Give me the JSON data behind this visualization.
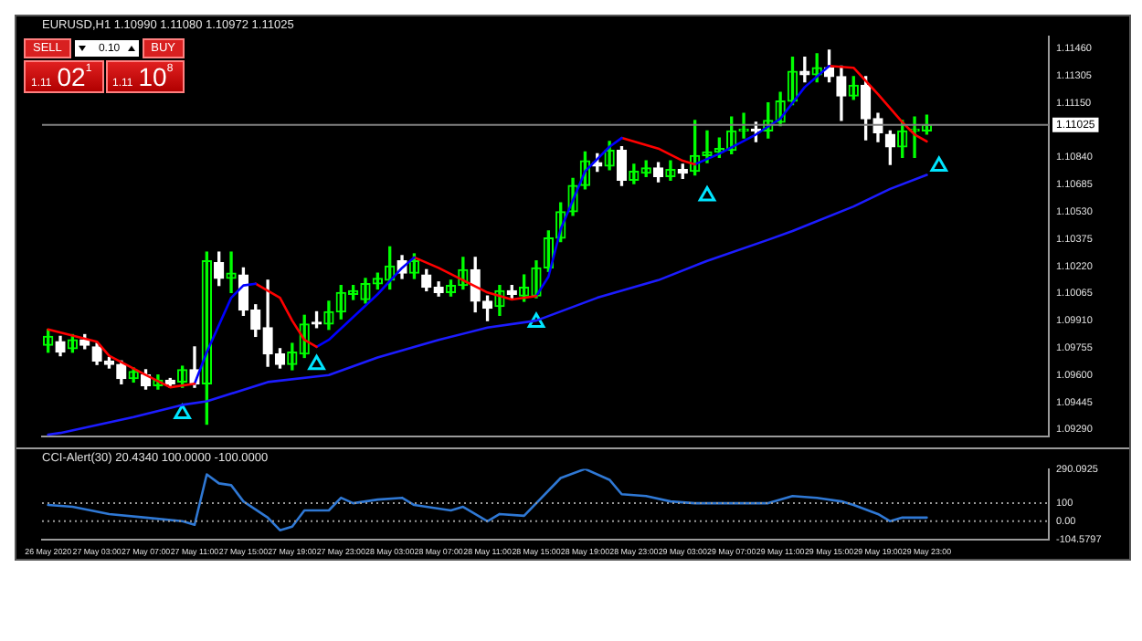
{
  "chart_data": [
    {
      "type": "candlestick",
      "title": "EURUSD,H1 1.10990 1.11080 1.10972 1.11025",
      "x": [
        "2020-05-26T23:00",
        "2020-05-27T00:00",
        "2020-05-27T01:00",
        "2020-05-27T02:00",
        "2020-05-27T03:00",
        "2020-05-27T04:00",
        "2020-05-27T05:00",
        "2020-05-27T06:00",
        "2020-05-27T07:00",
        "2020-05-27T08:00",
        "2020-05-27T09:00",
        "2020-05-27T10:00",
        "2020-05-27T11:00",
        "2020-05-27T12:00",
        "2020-05-27T13:00",
        "2020-05-27T14:00",
        "2020-05-27T15:00",
        "2020-05-27T16:00",
        "2020-05-27T17:00",
        "2020-05-27T18:00",
        "2020-05-27T19:00",
        "2020-05-27T20:00",
        "2020-05-27T21:00",
        "2020-05-27T22:00",
        "2020-05-27T23:00",
        "2020-05-28T00:00",
        "2020-05-28T01:00",
        "2020-05-28T02:00",
        "2020-05-28T03:00",
        "2020-05-28T04:00",
        "2020-05-28T05:00",
        "2020-05-28T06:00",
        "2020-05-28T07:00",
        "2020-05-28T08:00",
        "2020-05-28T09:00",
        "2020-05-28T10:00",
        "2020-05-28T11:00",
        "2020-05-28T12:00",
        "2020-05-28T13:00",
        "2020-05-28T14:00",
        "2020-05-28T15:00",
        "2020-05-28T16:00",
        "2020-05-28T17:00",
        "2020-05-28T18:00",
        "2020-05-28T19:00",
        "2020-05-28T20:00",
        "2020-05-28T21:00",
        "2020-05-28T22:00",
        "2020-05-28T23:00",
        "2020-05-29T00:00",
        "2020-05-29T01:00",
        "2020-05-29T02:00",
        "2020-05-29T03:00",
        "2020-05-29T04:00",
        "2020-05-29T05:00",
        "2020-05-29T06:00",
        "2020-05-29T07:00",
        "2020-05-29T08:00",
        "2020-05-29T09:00",
        "2020-05-29T10:00",
        "2020-05-29T11:00",
        "2020-05-29T12:00",
        "2020-05-29T13:00",
        "2020-05-29T14:00",
        "2020-05-29T15:00",
        "2020-05-29T16:00",
        "2020-05-29T17:00",
        "2020-05-29T18:00",
        "2020-05-29T19:00",
        "2020-05-29T20:00",
        "2020-05-29T21:00",
        "2020-05-29T22:00",
        "2020-05-29T23:00"
      ],
      "ohlc": [
        [
          1.0977,
          1.0986,
          1.0973,
          1.0982
        ],
        [
          1.0979,
          1.0982,
          1.0971,
          1.0973
        ],
        [
          1.0975,
          1.0983,
          1.0973,
          1.098
        ],
        [
          1.098,
          1.0983,
          1.0975,
          1.0977
        ],
        [
          1.0976,
          1.0978,
          1.0966,
          1.0968
        ],
        [
          1.0968,
          1.097,
          1.0964,
          1.0966
        ],
        [
          1.0966,
          1.0968,
          1.0955,
          1.0958
        ],
        [
          1.0958,
          1.0964,
          1.0956,
          1.0962
        ],
        [
          1.096,
          1.0963,
          1.0952,
          1.0954
        ],
        [
          1.0954,
          1.096,
          1.0952,
          1.0957
        ],
        [
          1.0957,
          1.0958,
          1.0953,
          1.0955
        ],
        [
          1.0956,
          1.0965,
          1.0953,
          1.0963
        ],
        [
          1.0963,
          1.0976,
          1.0953,
          1.0955
        ],
        [
          1.0955,
          1.103,
          1.0932,
          1.1025
        ],
        [
          1.1024,
          1.103,
          1.1011,
          1.1015
        ],
        [
          1.1015,
          1.103,
          1.1007,
          1.1018
        ],
        [
          1.1017,
          1.1021,
          1.0994,
          1.0997
        ],
        [
          1.0997,
          1.1,
          1.0982,
          1.0986
        ],
        [
          1.0987,
          1.1014,
          1.0965,
          1.0972
        ],
        [
          1.0972,
          1.0975,
          1.0964,
          1.0966
        ],
        [
          1.0966,
          1.0978,
          1.0963,
          1.0973
        ],
        [
          1.0972,
          1.0994,
          1.097,
          1.0989
        ],
        [
          1.099,
          1.0996,
          1.0987,
          1.0989
        ],
        [
          1.0989,
          1.1002,
          1.0986,
          1.0996
        ],
        [
          1.0996,
          1.1011,
          1.0992,
          1.1007
        ],
        [
          1.1006,
          1.1011,
          1.1003,
          1.1008
        ],
        [
          1.1003,
          1.1015,
          1.1001,
          1.1012
        ],
        [
          1.1012,
          1.1018,
          1.1009,
          1.1015
        ],
        [
          1.1014,
          1.1033,
          1.1009,
          1.1022
        ],
        [
          1.1025,
          1.1028,
          1.1015,
          1.1018
        ],
        [
          1.1018,
          1.1029,
          1.1015,
          1.1025
        ],
        [
          1.1017,
          1.102,
          1.1008,
          1.101
        ],
        [
          1.101,
          1.1013,
          1.1005,
          1.1007
        ],
        [
          1.1007,
          1.1014,
          1.1005,
          1.1011
        ],
        [
          1.1011,
          1.1027,
          1.1009,
          1.102
        ],
        [
          1.102,
          1.1027,
          1.0996,
          1.1002
        ],
        [
          1.1002,
          1.1005,
          1.0991,
          1.0998
        ],
        [
          1.0999,
          1.1011,
          1.0994,
          1.1008
        ],
        [
          1.1008,
          1.1011,
          1.1003,
          1.1006
        ],
        [
          1.1005,
          1.1017,
          1.1002,
          1.101
        ],
        [
          1.1005,
          1.1025,
          1.1004,
          1.1021
        ],
        [
          1.1021,
          1.1042,
          1.1019,
          1.1038
        ],
        [
          1.1038,
          1.1058,
          1.1036,
          1.1053
        ],
        [
          1.1053,
          1.1072,
          1.1051,
          1.1068
        ],
        [
          1.1068,
          1.1087,
          1.1066,
          1.1082
        ],
        [
          1.1081,
          1.1086,
          1.1076,
          1.1079
        ],
        [
          1.1079,
          1.1093,
          1.1077,
          1.1088
        ],
        [
          1.1088,
          1.109,
          1.1068,
          1.1071
        ],
        [
          1.1071,
          1.108,
          1.1069,
          1.1076
        ],
        [
          1.1075,
          1.1082,
          1.1073,
          1.1078
        ],
        [
          1.1078,
          1.1081,
          1.107,
          1.1073
        ],
        [
          1.1073,
          1.1082,
          1.1071,
          1.1077
        ],
        [
          1.1077,
          1.108,
          1.1072,
          1.1075
        ],
        [
          1.1076,
          1.1105,
          1.1074,
          1.1085
        ],
        [
          1.1085,
          1.1099,
          1.1081,
          1.1087
        ],
        [
          1.1087,
          1.1095,
          1.1084,
          1.1089
        ],
        [
          1.1088,
          1.1107,
          1.1086,
          1.1099
        ],
        [
          1.1099,
          1.1109,
          1.1095,
          1.11
        ],
        [
          1.11,
          1.1104,
          1.1093,
          1.1099
        ],
        [
          1.1099,
          1.1115,
          1.1095,
          1.1105
        ],
        [
          1.1104,
          1.1121,
          1.1102,
          1.1116
        ],
        [
          1.1116,
          1.1141,
          1.1114,
          1.1133
        ],
        [
          1.1133,
          1.1141,
          1.1127,
          1.1131
        ],
        [
          1.1131,
          1.1143,
          1.1127,
          1.1135
        ],
        [
          1.1135,
          1.1145,
          1.1127,
          1.113
        ],
        [
          1.113,
          1.1136,
          1.1105,
          1.1119
        ],
        [
          1.1119,
          1.113,
          1.1117,
          1.1125
        ],
        [
          1.1125,
          1.113,
          1.1094,
          1.1106
        ],
        [
          1.1106,
          1.1109,
          1.1093,
          1.1098
        ],
        [
          1.1097,
          1.1099,
          1.108,
          1.109
        ],
        [
          1.109,
          1.1105,
          1.1084,
          1.1099
        ],
        [
          1.1099,
          1.1107,
          1.1084,
          1.11
        ],
        [
          1.1099,
          1.1108,
          1.10972,
          1.11025
        ]
      ],
      "series": [
        {
          "type": "line",
          "color": "#ff0000",
          "x": [
            "2020-05-26T23:00",
            "2020-05-27T03:00",
            "2020-05-27T04:00",
            "2020-05-27T07:00",
            "2020-05-27T09:00",
            "2020-05-27T11:00"
          ],
          "values": [
            1.0986,
            1.0979,
            1.0971,
            1.096,
            1.0953,
            1.0955
          ]
        },
        {
          "type": "line",
          "color": "#0000ff",
          "x": [
            "2020-05-27T11:00",
            "2020-05-27T12:00",
            "2020-05-27T14:00",
            "2020-05-27T15:00",
            "2020-05-27T16:00"
          ],
          "values": [
            1.0955,
            1.0973,
            1.1004,
            1.1011,
            1.1012
          ]
        },
        {
          "type": "line",
          "color": "#ff0000",
          "x": [
            "2020-05-27T16:00",
            "2020-05-27T18:00",
            "2020-05-27T19:00",
            "2020-05-27T20:00",
            "2020-05-27T21:00"
          ],
          "values": [
            1.1012,
            1.1004,
            1.0991,
            1.098,
            1.0976
          ]
        },
        {
          "type": "line",
          "color": "#0000ff",
          "x": [
            "2020-05-27T21:00",
            "2020-05-27T22:00",
            "2020-05-28T00:00",
            "2020-05-28T02:00",
            "2020-05-28T04:00",
            "2020-05-28T05:00"
          ],
          "values": [
            1.0976,
            1.098,
            1.0993,
            1.1006,
            1.1021,
            1.1027
          ]
        },
        {
          "type": "line",
          "color": "#ff0000",
          "x": [
            "2020-05-28T05:00",
            "2020-05-28T07:00",
            "2020-05-28T09:00",
            "2020-05-28T11:00",
            "2020-05-28T13:00",
            "2020-05-28T15:00"
          ],
          "values": [
            1.1027,
            1.1021,
            1.1014,
            1.1007,
            1.1003,
            1.1005
          ]
        },
        {
          "type": "line",
          "color": "#0000ff",
          "x": [
            "2020-05-28T15:00",
            "2020-05-28T16:00",
            "2020-05-28T17:00",
            "2020-05-28T19:00",
            "2020-05-28T21:00",
            "2020-05-28T22:00"
          ],
          "values": [
            1.1005,
            1.1016,
            1.1043,
            1.1076,
            1.109,
            1.1095
          ]
        },
        {
          "type": "line",
          "color": "#ff0000",
          "x": [
            "2020-05-28T22:00",
            "2020-05-29T01:00",
            "2020-05-29T03:00",
            "2020-05-29T04:00"
          ],
          "values": [
            1.1095,
            1.1089,
            1.1082,
            1.108
          ]
        },
        {
          "type": "line",
          "color": "#0000ff",
          "x": [
            "2020-05-29T04:00",
            "2020-05-29T06:00",
            "2020-05-29T09:00",
            "2020-05-29T11:00",
            "2020-05-29T13:00",
            "2020-05-29T15:00"
          ],
          "values": [
            1.108,
            1.1086,
            1.1097,
            1.1106,
            1.1124,
            1.1136
          ]
        },
        {
          "type": "line",
          "color": "#ff0000",
          "x": [
            "2020-05-29T15:00",
            "2020-05-29T17:00",
            "2020-05-29T19:00",
            "2020-05-29T21:00",
            "2020-05-29T22:00",
            "2020-05-29T23:00"
          ],
          "values": [
            1.1136,
            1.1135,
            1.112,
            1.1104,
            1.1097,
            1.1093
          ]
        },
        {
          "type": "line",
          "color": "#1c1cff",
          "x": [
            "2020-05-26T23:00",
            "2020-05-27T00:00",
            "2020-05-27T06:00",
            "2020-05-27T10:00",
            "2020-05-27T12:00",
            "2020-05-27T17:00",
            "2020-05-27T22:00",
            "2020-05-28T02:00",
            "2020-05-28T07:00",
            "2020-05-28T11:00",
            "2020-05-28T15:00",
            "2020-05-28T20:00",
            "2020-05-29T01:00",
            "2020-05-29T05:00",
            "2020-05-29T10:00",
            "2020-05-29T12:00",
            "2020-05-29T17:00",
            "2020-05-29T20:00",
            "2020-05-29T23:00"
          ],
          "values": [
            1.0926,
            1.0927,
            1.0936,
            1.0943,
            1.0945,
            1.0956,
            1.096,
            1.097,
            1.098,
            1.0987,
            1.0991,
            1.1004,
            1.1014,
            1.1025,
            1.1037,
            1.1042,
            1.1056,
            1.1066,
            1.1074
          ]
        },
        {
          "type": "scatter",
          "marker": "triangle",
          "color": "#00e5ff",
          "x": [
            "2020-05-27T10:00",
            "2020-05-27T21:00",
            "2020-05-28T15:00",
            "2020-05-29T05:00",
            "2020-05-30T00:00"
          ],
          "values": [
            1.0938,
            1.0966,
            1.099,
            1.1062,
            1.1079
          ]
        }
      ],
      "xlim": [
        "2020-05-26T22:30",
        "2020-05-30T09:00"
      ],
      "ylim": [
        1.0925,
        1.1153
      ],
      "yticks": [
        {
          "value": 1.0929,
          "label": "1.09290"
        },
        1.09445,
        {
          "value": 1.096,
          "label": "1.09600"
        },
        1.09755,
        {
          "value": 1.0991,
          "label": "1.09910"
        },
        1.10065,
        {
          "value": 1.1022,
          "label": "1.10220"
        },
        1.10375,
        {
          "value": 1.1053,
          "label": "1.10530"
        },
        1.10685,
        {
          "value": 1.1084,
          "label": "1.10840"
        },
        {
          "value": 1.1115,
          "label": "1.11150"
        },
        1.11305,
        {
          "value": 1.1146,
          "label": "1.11460"
        }
      ],
      "tick_labels": "y",
      "ref_lines": [
        {
          "axis": "y",
          "value": 1.11025,
          "label": "1.11025",
          "color": "#808080"
        }
      ],
      "annotations": [
        "SELL",
        "BUY",
        "0.10",
        "1.11 02$^{1}$",
        "1.11 10$^{8}$"
      ]
    },
    {
      "type": "line",
      "title": "CCI-Alert(30) 20.4340 100.0000 -100.0000",
      "series": [
        {
          "color": "#2f78d4",
          "x": [
            "2020-05-26T23:00",
            "2020-05-27T01:00",
            "2020-05-27T04:00",
            "2020-05-27T07:00",
            "2020-05-27T10:00",
            "2020-05-27T11:00",
            "2020-05-27T12:00",
            "2020-05-27T13:00",
            "2020-05-27T14:00",
            "2020-05-27T15:00",
            "2020-05-27T17:00",
            "2020-05-27T18:00",
            "2020-05-27T19:00",
            "2020-05-27T20:00",
            "2020-05-27T22:00",
            "2020-05-27T23:00",
            "2020-05-28T00:00",
            "2020-05-28T02:00",
            "2020-05-28T04:00",
            "2020-05-28T05:00",
            "2020-05-28T08:00",
            "2020-05-28T09:00",
            "2020-05-28T11:00",
            "2020-05-28T12:00",
            "2020-05-28T14:00",
            "2020-05-28T17:00",
            "2020-05-28T19:00",
            "2020-05-28T21:00",
            "2020-05-28T22:00",
            "2020-05-29T00:00",
            "2020-05-29T02:00",
            "2020-05-29T04:00",
            "2020-05-29T07:00",
            "2020-05-29T10:00",
            "2020-05-29T12:00",
            "2020-05-29T14:00",
            "2020-05-29T16:00",
            "2020-05-29T17:00",
            "2020-05-29T19:00",
            "2020-05-29T20:00",
            "2020-05-29T21:00",
            "2020-05-29T23:00"
          ],
          "values": [
            90,
            80,
            40,
            20,
            0,
            -20,
            260,
            210,
            200,
            110,
            20,
            -50,
            -30,
            60,
            60,
            130,
            100,
            120,
            130,
            90,
            60,
            80,
            0,
            40,
            30,
            240,
            290,
            230,
            150,
            140,
            110,
            100,
            100,
            100,
            140,
            130,
            110,
            90,
            40,
            0,
            20,
            20
          ]
        }
      ],
      "xlim": [
        "2020-05-26T22:30",
        "2020-05-30T09:00"
      ],
      "ylim": [
        -104.5797,
        290.0925
      ],
      "xticks": [
        {
          "value": "2020-05-26T23:00",
          "label": "26 May 2020"
        },
        {
          "value": "2020-05-27T03:00",
          "label": "27 May 03:00"
        },
        {
          "value": "2020-05-27T07:00",
          "label": "27 May 07:00"
        },
        {
          "value": "2020-05-27T11:00",
          "label": "27 May 11:00"
        },
        {
          "value": "2020-05-27T15:00",
          "label": "27 May 15:00"
        },
        {
          "value": "2020-05-27T19:00",
          "label": "27 May 19:00"
        },
        {
          "value": "2020-05-27T23:00",
          "label": "27 May 23:00"
        },
        {
          "value": "2020-05-28T03:00",
          "label": "28 May 03:00"
        },
        {
          "value": "2020-05-28T07:00",
          "label": "28 May 07:00"
        },
        {
          "value": "2020-05-28T11:00",
          "label": "28 May 11:00"
        },
        {
          "value": "2020-05-28T15:00",
          "label": "28 May 15:00"
        },
        {
          "value": "2020-05-28T19:00",
          "label": "28 May 19:00"
        },
        {
          "value": "2020-05-28T23:00",
          "label": "28 May 23:00"
        },
        {
          "value": "2020-05-29T03:00",
          "label": "29 May 03:00"
        },
        {
          "value": "2020-05-29T07:00",
          "label": "29 May 07:00"
        },
        {
          "value": "2020-05-29T11:00",
          "label": "29 May 11:00"
        },
        {
          "value": "2020-05-29T15:00",
          "label": "29 May 15:00"
        },
        {
          "value": "2020-05-29T19:00",
          "label": "29 May 19:00"
        },
        {
          "value": "2020-05-29T23:00",
          "label": "29 May 23:00"
        }
      ],
      "yticks": [
        290.0925,
        100,
        {
          "value": 0,
          "label": "0.00"
        },
        -104.5797
      ],
      "ref_lines": [
        {
          "axis": "y",
          "value": 100,
          "color": "#9a9a9a",
          "line_style": "dotted"
        },
        {
          "axis": "y",
          "value": 0,
          "color": "#9a9a9a",
          "line_style": "dotted"
        }
      ]
    }
  ]
}
